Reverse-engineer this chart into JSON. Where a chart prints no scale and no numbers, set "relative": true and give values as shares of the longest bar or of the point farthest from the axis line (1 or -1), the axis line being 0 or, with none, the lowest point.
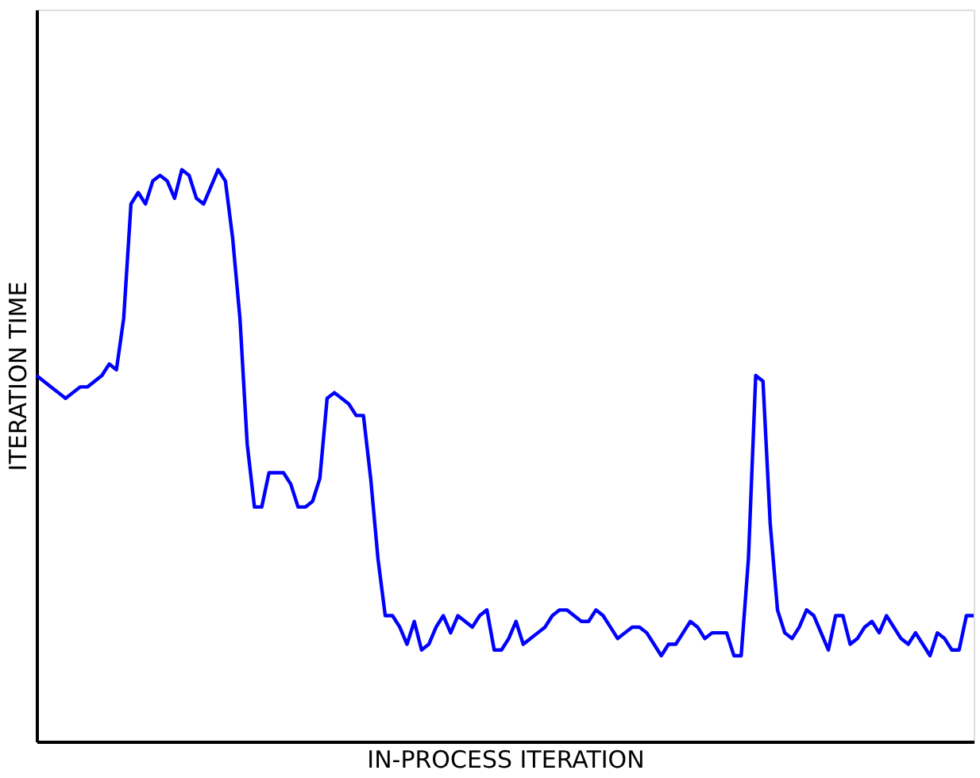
{
  "chart_data": {
    "type": "line",
    "relative": true,
    "xlabel": "IN-PROCESS ITERATION",
    "ylabel": "ITERATION TIME",
    "grid": false,
    "marker": "none",
    "line_style": "solid",
    "tick_labels": false,
    "categories": [
      null,
      null,
      null,
      null,
      null,
      null,
      null,
      null,
      null,
      null,
      null,
      null,
      null,
      null,
      null,
      null,
      null,
      null,
      null,
      null,
      null,
      null,
      null,
      null,
      null,
      null,
      null,
      null,
      null,
      null,
      null,
      null,
      null,
      null,
      null,
      null,
      null,
      null,
      null,
      null,
      null,
      null,
      null,
      null,
      null,
      null,
      null,
      null,
      null,
      null,
      null,
      null,
      null,
      null,
      null,
      null,
      null,
      null,
      null,
      null,
      null,
      null,
      null,
      null,
      null,
      null,
      null,
      null,
      null,
      null,
      null,
      null,
      null,
      null,
      null,
      null,
      null,
      null,
      null,
      null,
      null,
      null,
      null,
      null,
      null,
      null,
      null,
      null,
      null,
      null,
      null,
      null,
      null,
      null,
      null,
      null,
      null,
      null,
      null,
      null,
      null,
      null,
      null,
      null,
      null,
      null,
      null,
      null,
      null,
      null,
      null,
      null,
      null,
      null,
      null,
      null,
      null,
      null,
      null,
      null,
      null,
      null,
      null,
      null,
      null,
      null,
      null,
      null,
      null,
      null
    ],
    "series": [
      {
        "color": "#0000ff",
        "values": [
          0.64,
          0.63,
          0.62,
          0.61,
          0.6,
          0.61,
          0.62,
          0.62,
          0.63,
          0.64,
          0.66,
          0.65,
          0.74,
          0.94,
          0.96,
          0.94,
          0.98,
          0.99,
          0.98,
          0.95,
          1.0,
          0.99,
          0.95,
          0.94,
          0.97,
          1.0,
          0.98,
          0.88,
          0.74,
          0.52,
          0.41,
          0.41,
          0.47,
          0.47,
          0.47,
          0.45,
          0.41,
          0.41,
          0.42,
          0.46,
          0.6,
          0.61,
          0.6,
          0.59,
          0.57,
          0.57,
          0.46,
          0.32,
          0.22,
          0.22,
          0.2,
          0.17,
          0.21,
          0.16,
          0.17,
          0.2,
          0.22,
          0.19,
          0.22,
          0.21,
          0.2,
          0.22,
          0.23,
          0.16,
          0.16,
          0.18,
          0.21,
          0.17,
          0.18,
          0.19,
          0.2,
          0.22,
          0.23,
          0.23,
          0.22,
          0.21,
          0.21,
          0.23,
          0.22,
          0.2,
          0.18,
          0.19,
          0.2,
          0.2,
          0.19,
          0.17,
          0.15,
          0.17,
          0.17,
          0.19,
          0.21,
          0.2,
          0.18,
          0.19,
          0.19,
          0.19,
          0.15,
          0.15,
          0.32,
          0.64,
          0.63,
          0.38,
          0.23,
          0.19,
          0.18,
          0.2,
          0.23,
          0.22,
          0.19,
          0.16,
          0.22,
          0.22,
          0.17,
          0.18,
          0.2,
          0.21,
          0.19,
          0.22,
          0.2,
          0.18,
          0.17,
          0.19,
          0.17,
          0.15,
          0.19,
          0.18,
          0.16,
          0.16,
          0.22,
          0.22
        ]
      }
    ]
  }
}
